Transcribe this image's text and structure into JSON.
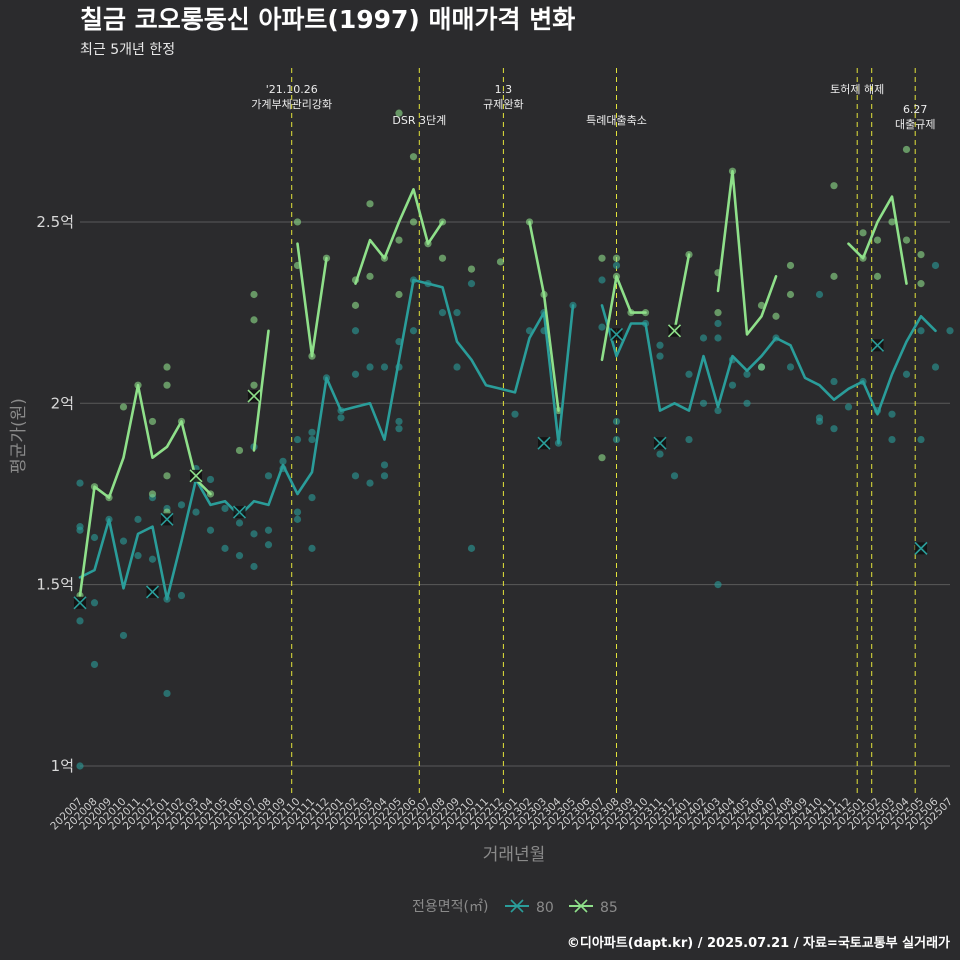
{
  "header": {
    "title": "칠금 코오롱동신 아파트(1997) 매매가격 변화",
    "subtitle": "최근 5개년 한정"
  },
  "caption": "©디아파트(dapt.kr) / 2025.07.21 / 자료=국토교통부 실거래가",
  "colors": {
    "background": "#2b2b2d",
    "grid": "#5a5a5a",
    "event_line": "#e3e33a",
    "series_80": "#2a9d9a",
    "series_85": "#8fe08a",
    "extreme_marker": "#111111"
  },
  "chart_data": {
    "type": "line",
    "xlabel": "거래년월",
    "ylabel": "평균가(원)",
    "ylim": [
      0.92,
      2.93
    ],
    "yticks": [
      {
        "value": 1.0,
        "label": "1억"
      },
      {
        "value": 1.5,
        "label": "1.5억"
      },
      {
        "value": 2.0,
        "label": "2억"
      },
      {
        "value": 2.5,
        "label": "2.5억"
      }
    ],
    "grid": true,
    "legend_position": "bottom",
    "legend_title": "전용면적(㎡)",
    "x": [
      "202007",
      "202008",
      "202009",
      "202010",
      "202011",
      "202012",
      "202101",
      "202102",
      "202103",
      "202104",
      "202105",
      "202106",
      "202107",
      "202108",
      "202109",
      "202110",
      "202111",
      "202112",
      "202201",
      "202202",
      "202203",
      "202204",
      "202205",
      "202206",
      "202207",
      "202208",
      "202209",
      "202210",
      "202211",
      "202212",
      "202301",
      "202302",
      "202303",
      "202304",
      "202305",
      "202306",
      "202307",
      "202308",
      "202309",
      "202310",
      "202311",
      "202312",
      "202401",
      "202402",
      "202403",
      "202404",
      "202405",
      "202406",
      "202407",
      "202408",
      "202409",
      "202410",
      "202411",
      "202412",
      "202501",
      "202502",
      "202503",
      "202504",
      "202505",
      "202506",
      "202507"
    ],
    "series": [
      {
        "name": "80",
        "values": [
          1.52,
          1.54,
          1.68,
          1.49,
          1.64,
          1.66,
          1.46,
          1.62,
          1.79,
          1.72,
          1.73,
          1.69,
          1.73,
          1.72,
          1.83,
          1.75,
          1.81,
          2.07,
          1.98,
          1.99,
          2.0,
          1.9,
          2.12,
          2.34,
          2.33,
          2.32,
          2.17,
          2.12,
          2.05,
          2.04,
          2.03,
          2.18,
          2.25,
          1.89,
          2.27,
          null,
          2.27,
          2.13,
          2.22,
          2.22,
          1.98,
          2.0,
          1.98,
          2.13,
          1.99,
          2.13,
          2.09,
          2.13,
          2.18,
          2.16,
          2.07,
          2.05,
          2.01,
          2.04,
          2.06,
          1.97,
          2.08,
          2.17,
          2.24,
          2.2,
          null
        ]
      },
      {
        "name": "85",
        "values": [
          1.47,
          1.77,
          1.74,
          1.85,
          2.05,
          1.85,
          1.88,
          1.95,
          1.79,
          1.75,
          null,
          null,
          1.87,
          2.2,
          null,
          2.44,
          2.13,
          2.4,
          null,
          2.33,
          2.45,
          2.4,
          2.5,
          2.59,
          2.44,
          2.5,
          null,
          2.37,
          null,
          2.39,
          null,
          2.5,
          2.3,
          1.98,
          null,
          null,
          2.12,
          2.35,
          2.25,
          2.25,
          null,
          2.2,
          2.41,
          null,
          2.31,
          2.64,
          2.19,
          2.24,
          2.35,
          null,
          null,
          2.47,
          null,
          2.44,
          2.4,
          2.5,
          2.57,
          2.33,
          null,
          null,
          null
        ]
      }
    ],
    "scatter_points": {
      "80": [
        {
          "x": "202007",
          "y": 1.78
        },
        {
          "x": "202007",
          "y": 1.66
        },
        {
          "x": "202007",
          "y": 1.65
        },
        {
          "x": "202007",
          "y": 1.4
        },
        {
          "x": "202007",
          "y": 1.0
        },
        {
          "x": "202008",
          "y": 1.63
        },
        {
          "x": "202008",
          "y": 1.45
        },
        {
          "x": "202008",
          "y": 1.28
        },
        {
          "x": "202009",
          "y": 1.68
        },
        {
          "x": "202010",
          "y": 1.62
        },
        {
          "x": "202010",
          "y": 1.36
        },
        {
          "x": "202011",
          "y": 1.58
        },
        {
          "x": "202011",
          "y": 1.68
        },
        {
          "x": "202012",
          "y": 1.74
        },
        {
          "x": "202012",
          "y": 1.57
        },
        {
          "x": "202101",
          "y": 1.71
        },
        {
          "x": "202101",
          "y": 1.2
        },
        {
          "x": "202101",
          "y": 1.46
        },
        {
          "x": "202102",
          "y": 1.72
        },
        {
          "x": "202102",
          "y": 1.47
        },
        {
          "x": "202103",
          "y": 1.7
        },
        {
          "x": "202103",
          "y": 1.82
        },
        {
          "x": "202104",
          "y": 1.79
        },
        {
          "x": "202104",
          "y": 1.65
        },
        {
          "x": "202105",
          "y": 1.71
        },
        {
          "x": "202105",
          "y": 1.6
        },
        {
          "x": "202106",
          "y": 1.67
        },
        {
          "x": "202106",
          "y": 1.58
        },
        {
          "x": "202107",
          "y": 1.64
        },
        {
          "x": "202107",
          "y": 1.55
        },
        {
          "x": "202107",
          "y": 1.88
        },
        {
          "x": "202108",
          "y": 1.8
        },
        {
          "x": "202108",
          "y": 1.65
        },
        {
          "x": "202108",
          "y": 1.61
        },
        {
          "x": "202109",
          "y": 1.84
        },
        {
          "x": "202109",
          "y": 1.82
        },
        {
          "x": "202110",
          "y": 1.9
        },
        {
          "x": "202110",
          "y": 1.7
        },
        {
          "x": "202110",
          "y": 1.68
        },
        {
          "x": "202111",
          "y": 1.92
        },
        {
          "x": "202111",
          "y": 1.9
        },
        {
          "x": "202111",
          "y": 1.74
        },
        {
          "x": "202111",
          "y": 1.6
        },
        {
          "x": "202112",
          "y": 2.07
        },
        {
          "x": "202201",
          "y": 1.98
        },
        {
          "x": "202201",
          "y": 1.96
        },
        {
          "x": "202202",
          "y": 2.2
        },
        {
          "x": "202202",
          "y": 2.08
        },
        {
          "x": "202202",
          "y": 1.8
        },
        {
          "x": "202203",
          "y": 2.1
        },
        {
          "x": "202203",
          "y": 1.78
        },
        {
          "x": "202204",
          "y": 2.1
        },
        {
          "x": "202204",
          "y": 1.83
        },
        {
          "x": "202204",
          "y": 1.8
        },
        {
          "x": "202205",
          "y": 2.17
        },
        {
          "x": "202205",
          "y": 2.1
        },
        {
          "x": "202205",
          "y": 1.95
        },
        {
          "x": "202205",
          "y": 1.93
        },
        {
          "x": "202206",
          "y": 2.34
        },
        {
          "x": "202206",
          "y": 2.2
        },
        {
          "x": "202207",
          "y": 2.33
        },
        {
          "x": "202208",
          "y": 2.25
        },
        {
          "x": "202209",
          "y": 2.25
        },
        {
          "x": "202209",
          "y": 2.1
        },
        {
          "x": "202210",
          "y": 2.33
        },
        {
          "x": "202210",
          "y": 1.6
        },
        {
          "x": "202301",
          "y": 1.97
        },
        {
          "x": "202302",
          "y": 2.2
        },
        {
          "x": "202303",
          "y": 2.25
        },
        {
          "x": "202303",
          "y": 2.2
        },
        {
          "x": "202304",
          "y": 1.89
        },
        {
          "x": "202305",
          "y": 2.27
        },
        {
          "x": "202307",
          "y": 2.34
        },
        {
          "x": "202307",
          "y": 2.21
        },
        {
          "x": "202308",
          "y": 2.38
        },
        {
          "x": "202308",
          "y": 1.95
        },
        {
          "x": "202308",
          "y": 1.9
        },
        {
          "x": "202310",
          "y": 2.22
        },
        {
          "x": "202311",
          "y": 2.16
        },
        {
          "x": "202311",
          "y": 2.13
        },
        {
          "x": "202311",
          "y": 1.86
        },
        {
          "x": "202312",
          "y": 1.8
        },
        {
          "x": "202401",
          "y": 2.08
        },
        {
          "x": "202401",
          "y": 1.9
        },
        {
          "x": "202402",
          "y": 2.18
        },
        {
          "x": "202402",
          "y": 2.0
        },
        {
          "x": "202403",
          "y": 2.22
        },
        {
          "x": "202403",
          "y": 2.18
        },
        {
          "x": "202403",
          "y": 1.98
        },
        {
          "x": "202403",
          "y": 1.5
        },
        {
          "x": "202404",
          "y": 2.12
        },
        {
          "x": "202404",
          "y": 2.05
        },
        {
          "x": "202405",
          "y": 2.08
        },
        {
          "x": "202405",
          "y": 2.0
        },
        {
          "x": "202406",
          "y": 2.1
        },
        {
          "x": "202407",
          "y": 2.18
        },
        {
          "x": "202408",
          "y": 2.1
        },
        {
          "x": "202410",
          "y": 2.3
        },
        {
          "x": "202410",
          "y": 1.96
        },
        {
          "x": "202410",
          "y": 1.95
        },
        {
          "x": "202411",
          "y": 2.06
        },
        {
          "x": "202411",
          "y": 1.93
        },
        {
          "x": "202412",
          "y": 1.99
        },
        {
          "x": "202501",
          "y": 2.06
        },
        {
          "x": "202502",
          "y": 2.16
        },
        {
          "x": "202502",
          "y": 1.98
        },
        {
          "x": "202503",
          "y": 1.97
        },
        {
          "x": "202503",
          "y": 1.9
        },
        {
          "x": "202504",
          "y": 2.08
        },
        {
          "x": "202505",
          "y": 2.2
        },
        {
          "x": "202505",
          "y": 1.9
        },
        {
          "x": "202505",
          "y": 1.6
        },
        {
          "x": "202506",
          "y": 2.38
        },
        {
          "x": "202506",
          "y": 2.1
        },
        {
          "x": "202507",
          "y": 2.2
        }
      ],
      "85": [
        {
          "x": "202007",
          "y": 1.47
        },
        {
          "x": "202008",
          "y": 1.77
        },
        {
          "x": "202009",
          "y": 1.74
        },
        {
          "x": "202010",
          "y": 1.99
        },
        {
          "x": "202011",
          "y": 2.05
        },
        {
          "x": "202012",
          "y": 1.95
        },
        {
          "x": "202012",
          "y": 1.75
        },
        {
          "x": "202101",
          "y": 2.1
        },
        {
          "x": "202101",
          "y": 2.05
        },
        {
          "x": "202101",
          "y": 1.8
        },
        {
          "x": "202101",
          "y": 1.7
        },
        {
          "x": "202102",
          "y": 1.95
        },
        {
          "x": "202103",
          "y": 1.79
        },
        {
          "x": "202104",
          "y": 1.75
        },
        {
          "x": "202106",
          "y": 1.87
        },
        {
          "x": "202107",
          "y": 2.3
        },
        {
          "x": "202107",
          "y": 2.23
        },
        {
          "x": "202107",
          "y": 2.05
        },
        {
          "x": "202110",
          "y": 2.5
        },
        {
          "x": "202110",
          "y": 2.38
        },
        {
          "x": "202111",
          "y": 2.13
        },
        {
          "x": "202112",
          "y": 2.4
        },
        {
          "x": "202202",
          "y": 2.34
        },
        {
          "x": "202202",
          "y": 2.27
        },
        {
          "x": "202203",
          "y": 2.55
        },
        {
          "x": "202203",
          "y": 2.35
        },
        {
          "x": "202204",
          "y": 2.4
        },
        {
          "x": "202205",
          "y": 2.8
        },
        {
          "x": "202205",
          "y": 2.45
        },
        {
          "x": "202205",
          "y": 2.3
        },
        {
          "x": "202206",
          "y": 2.68
        },
        {
          "x": "202206",
          "y": 2.5
        },
        {
          "x": "202207",
          "y": 2.44
        },
        {
          "x": "202208",
          "y": 2.5
        },
        {
          "x": "202208",
          "y": 2.4
        },
        {
          "x": "202210",
          "y": 2.37
        },
        {
          "x": "202212",
          "y": 2.39
        },
        {
          "x": "202302",
          "y": 2.5
        },
        {
          "x": "202303",
          "y": 2.3
        },
        {
          "x": "202304",
          "y": 1.98
        },
        {
          "x": "202307",
          "y": 2.4
        },
        {
          "x": "202307",
          "y": 1.85
        },
        {
          "x": "202308",
          "y": 2.4
        },
        {
          "x": "202308",
          "y": 2.35
        },
        {
          "x": "202309",
          "y": 2.25
        },
        {
          "x": "202310",
          "y": 2.25
        },
        {
          "x": "202312",
          "y": 2.2
        },
        {
          "x": "202401",
          "y": 2.41
        },
        {
          "x": "202403",
          "y": 2.36
        },
        {
          "x": "202403",
          "y": 2.25
        },
        {
          "x": "202404",
          "y": 2.64
        },
        {
          "x": "202406",
          "y": 2.27
        },
        {
          "x": "202406",
          "y": 2.1
        },
        {
          "x": "202407",
          "y": 2.24
        },
        {
          "x": "202408",
          "y": 2.38
        },
        {
          "x": "202408",
          "y": 2.3
        },
        {
          "x": "202411",
          "y": 2.6
        },
        {
          "x": "202411",
          "y": 2.35
        },
        {
          "x": "202501",
          "y": 2.47
        },
        {
          "x": "202501",
          "y": 2.4
        },
        {
          "x": "202502",
          "y": 2.45
        },
        {
          "x": "202502",
          "y": 2.35
        },
        {
          "x": "202503",
          "y": 2.5
        },
        {
          "x": "202504",
          "y": 2.7
        },
        {
          "x": "202504",
          "y": 2.45
        },
        {
          "x": "202505",
          "y": 2.41
        },
        {
          "x": "202505",
          "y": 2.33
        }
      ]
    },
    "extreme_markers": [
      {
        "series": "80",
        "x": "202007",
        "y": 1.45
      },
      {
        "series": "80",
        "x": "202012",
        "y": 1.48
      },
      {
        "series": "80",
        "x": "202101",
        "y": 1.68
      },
      {
        "series": "85",
        "x": "202103",
        "y": 1.8
      },
      {
        "series": "80",
        "x": "202106",
        "y": 1.7
      },
      {
        "series": "85",
        "x": "202107",
        "y": 2.02
      },
      {
        "series": "80",
        "x": "202303",
        "y": 1.89
      },
      {
        "series": "80",
        "x": "202308",
        "y": 2.19
      },
      {
        "series": "80",
        "x": "202311",
        "y": 1.89
      },
      {
        "series": "85",
        "x": "202312",
        "y": 2.2
      },
      {
        "series": "80",
        "x": "202502",
        "y": 2.16
      },
      {
        "series": "80",
        "x": "202505",
        "y": 1.6
      }
    ],
    "events": [
      {
        "x": 7.3,
        "lines": [
          "'21.10.26",
          "가계부채관리강화"
        ],
        "row": 1
      },
      {
        "x": 11.7,
        "lines": [
          "DSR 3단계"
        ],
        "row": 2
      },
      {
        "x": 14.6,
        "lines": [
          "1.3",
          "규제완화"
        ],
        "row": 1
      },
      {
        "x": 18.5,
        "lines": [
          "특례대출축소"
        ],
        "row": 2
      },
      {
        "x": 26.8,
        "lines": [
          "토허제 해제"
        ],
        "row": 1
      },
      {
        "x": 27.3,
        "lines": [],
        "row": 1
      },
      {
        "x": 28.8,
        "lines": [
          "6.27",
          "대출규제"
        ],
        "row": 3
      }
    ]
  }
}
